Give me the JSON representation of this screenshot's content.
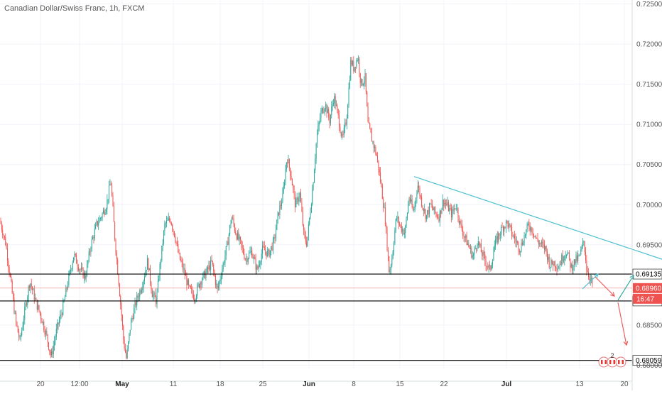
{
  "chart_data": {
    "type": "candlestick",
    "title": "Canadian Dollar/Swiss Franc, 1h, FXCM",
    "y_axis": {
      "side": "right",
      "ylim": [
        0.6795,
        0.7255
      ],
      "ticks": [
        0.725,
        0.72,
        0.715,
        0.71,
        0.705,
        0.7,
        0.695,
        0.6885,
        0.685,
        0.68
      ],
      "tick_labels": [
        "0.72500",
        "0.72000",
        "0.71500",
        "0.71000",
        "0.70500",
        "0.70000",
        "0.69500",
        "",
        "0.68500",
        "0.68000"
      ]
    },
    "x_axis": {
      "tick_labels": [
        "20",
        "12:00",
        "May",
        "11",
        "18",
        "25",
        "Jun",
        "8",
        "15",
        "22",
        "Jul",
        "13",
        "20"
      ],
      "bold_labels": [
        "May",
        "Jun",
        "Jul"
      ]
    },
    "price_path": [
      [
        0,
        0.698
      ],
      [
        8,
        0.6952
      ],
      [
        15,
        0.6905
      ],
      [
        22,
        0.6855
      ],
      [
        28,
        0.683
      ],
      [
        35,
        0.6868
      ],
      [
        42,
        0.6905
      ],
      [
        50,
        0.688
      ],
      [
        58,
        0.686
      ],
      [
        66,
        0.6835
      ],
      [
        72,
        0.681
      ],
      [
        80,
        0.6845
      ],
      [
        88,
        0.687
      ],
      [
        96,
        0.6905
      ],
      [
        104,
        0.6938
      ],
      [
        112,
        0.692
      ],
      [
        120,
        0.691
      ],
      [
        128,
        0.695
      ],
      [
        136,
        0.6975
      ],
      [
        144,
        0.6988
      ],
      [
        150,
        0.7
      ],
      [
        156,
        0.703
      ],
      [
        162,
        0.6955
      ],
      [
        168,
        0.6895
      ],
      [
        174,
        0.683
      ],
      [
        178,
        0.6808
      ],
      [
        184,
        0.6852
      ],
      [
        192,
        0.688
      ],
      [
        200,
        0.69
      ],
      [
        208,
        0.693
      ],
      [
        214,
        0.689
      ],
      [
        220,
        0.688
      ],
      [
        226,
        0.693
      ],
      [
        232,
        0.6975
      ],
      [
        240,
        0.6982
      ],
      [
        246,
        0.6962
      ],
      [
        252,
        0.6935
      ],
      [
        258,
        0.692
      ],
      [
        266,
        0.6895
      ],
      [
        274,
        0.6885
      ],
      [
        282,
        0.6905
      ],
      [
        290,
        0.6915
      ],
      [
        298,
        0.6928
      ],
      [
        306,
        0.6893
      ],
      [
        314,
        0.6925
      ],
      [
        320,
        0.695
      ],
      [
        326,
        0.6985
      ],
      [
        332,
        0.6965
      ],
      [
        338,
        0.6952
      ],
      [
        346,
        0.6932
      ],
      [
        354,
        0.6942
      ],
      [
        362,
        0.6918
      ],
      [
        370,
        0.6945
      ],
      [
        378,
        0.6938
      ],
      [
        386,
        0.6955
      ],
      [
        392,
        0.699
      ],
      [
        398,
        0.701
      ],
      [
        404,
        0.706
      ],
      [
        410,
        0.7035
      ],
      [
        416,
        0.6998
      ],
      [
        422,
        0.7015
      ],
      [
        428,
        0.696
      ],
      [
        432,
        0.6952
      ],
      [
        436,
        0.6985
      ],
      [
        440,
        0.702
      ],
      [
        446,
        0.7085
      ],
      [
        452,
        0.7115
      ],
      [
        458,
        0.7125
      ],
      [
        464,
        0.7105
      ],
      [
        470,
        0.7135
      ],
      [
        476,
        0.711
      ],
      [
        482,
        0.708
      ],
      [
        488,
        0.7108
      ],
      [
        494,
        0.718
      ],
      [
        498,
        0.717
      ],
      [
        504,
        0.7185
      ],
      [
        508,
        0.715
      ],
      [
        514,
        0.7158
      ],
      [
        518,
        0.71
      ],
      [
        524,
        0.708
      ],
      [
        530,
        0.7062
      ],
      [
        536,
        0.7028
      ],
      [
        542,
        0.6985
      ],
      [
        548,
        0.6915
      ],
      [
        552,
        0.6935
      ],
      [
        558,
        0.6985
      ],
      [
        564,
        0.6972
      ],
      [
        570,
        0.6965
      ],
      [
        576,
        0.701
      ],
      [
        582,
        0.699
      ],
      [
        588,
        0.7025
      ],
      [
        594,
        0.7002
      ],
      [
        600,
        0.6985
      ],
      [
        606,
        0.7
      ],
      [
        612,
        0.699
      ],
      [
        618,
        0.6985
      ],
      [
        624,
        0.7005
      ],
      [
        630,
        0.6998
      ],
      [
        636,
        0.6988
      ],
      [
        642,
        0.7
      ],
      [
        648,
        0.6975
      ],
      [
        654,
        0.696
      ],
      [
        660,
        0.6948
      ],
      [
        666,
        0.6935
      ],
      [
        672,
        0.6955
      ],
      [
        678,
        0.694
      ],
      [
        684,
        0.6928
      ],
      [
        690,
        0.6918
      ],
      [
        696,
        0.6948
      ],
      [
        702,
        0.6962
      ],
      [
        708,
        0.6972
      ],
      [
        714,
        0.6978
      ],
      [
        720,
        0.6965
      ],
      [
        726,
        0.6955
      ],
      [
        732,
        0.6945
      ],
      [
        738,
        0.696
      ],
      [
        744,
        0.6975
      ],
      [
        750,
        0.6968
      ],
      [
        756,
        0.6955
      ],
      [
        762,
        0.695
      ],
      [
        768,
        0.6945
      ],
      [
        774,
        0.6925
      ],
      [
        780,
        0.6928
      ],
      [
        786,
        0.6922
      ],
      [
        792,
        0.6935
      ],
      [
        798,
        0.6942
      ],
      [
        804,
        0.6922
      ],
      [
        810,
        0.693
      ],
      [
        816,
        0.6935
      ],
      [
        822,
        0.6955
      ],
      [
        826,
        0.692
      ],
      [
        830,
        0.691
      ],
      [
        834,
        0.69
      ]
    ],
    "horizontal_levels": [
      {
        "value": 0.69135,
        "label": "0.69135",
        "color": "#000000",
        "label_bg": "#ffffff",
        "label_color": "#000000"
      },
      {
        "value": 0.688,
        "label": "0.68800",
        "color": "#000000",
        "label_bg": "#ffffff",
        "label_color": "#000000"
      },
      {
        "value": 0.68059,
        "label": "0.68059",
        "color": "#000000",
        "label_bg": "#ffffff",
        "label_color": "#000000"
      },
      {
        "value": 0.6896,
        "label": "0.68960",
        "color": "#ef5350",
        "label_bg": "#ef5350",
        "label_color": "#ffffff"
      }
    ],
    "countdown_label": "16:47",
    "trendline": {
      "from": [
        583,
        0.7035
      ],
      "to": [
        932,
        0.6932
      ],
      "color": "#4bc0d0"
    },
    "arrows": [
      {
        "from": [
          820,
          0.6895
        ],
        "to": [
          842,
          0.69135
        ],
        "color": "#4bc0d0"
      },
      {
        "from": [
          838,
          0.691
        ],
        "to": [
          865,
          0.6886
        ],
        "color": "#ef5350"
      },
      {
        "from": [
          870,
          0.6881
        ],
        "to": [
          892,
          0.6912
        ],
        "color": "#26a69a"
      },
      {
        "from": [
          870,
          0.6878
        ],
        "to": [
          882,
          0.6825
        ],
        "color": "#ef5350"
      }
    ],
    "marker_badge": "2",
    "colors": {
      "up": "#26a69a",
      "down": "#ef5350",
      "grid": "#f0f3fa",
      "axis_text": "#555555"
    }
  }
}
